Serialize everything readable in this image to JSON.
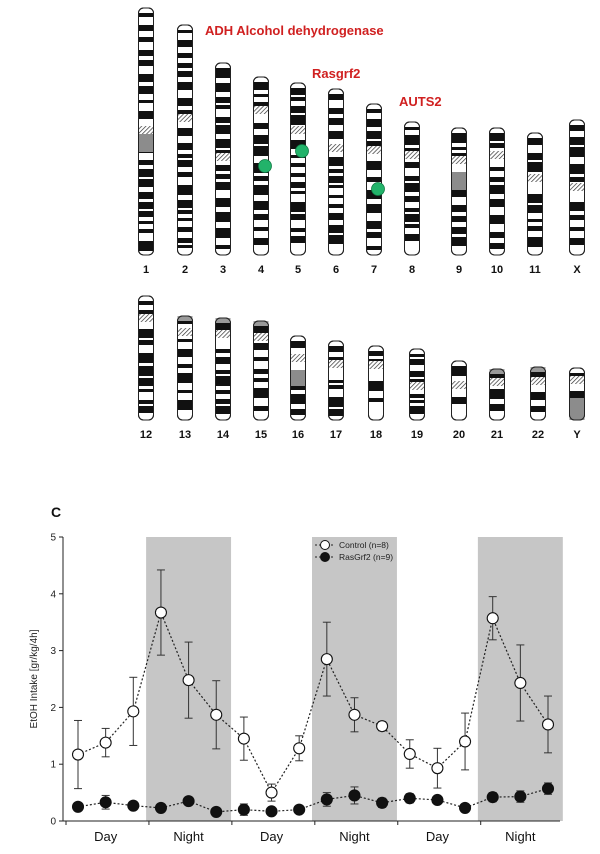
{
  "karyotype": {
    "chromosomes": [
      "1",
      "2",
      "3",
      "4",
      "5",
      "6",
      "7",
      "8",
      "9",
      "10",
      "11",
      "X",
      "12",
      "13",
      "14",
      "15",
      "16",
      "17",
      "18",
      "19",
      "20",
      "21",
      "22",
      "Y"
    ],
    "marker_color": "#22b36a",
    "gene_color": "#d02020",
    "genes": [
      {
        "label": "ADH Alcohol dehydrogenase",
        "chromosome": "4"
      },
      {
        "label": "Rasgrf2",
        "chromosome": "5"
      },
      {
        "label": "AUTS2",
        "chromosome": "7"
      }
    ]
  },
  "chart_data": {
    "type": "line",
    "panel_label": "C",
    "ylabel": "EtOH Intake [gr/kg/4h]",
    "ylim": [
      0,
      5
    ],
    "yticks": [
      "0",
      "1",
      "2",
      "3",
      "4",
      "5"
    ],
    "phases": [
      "Day",
      "Night",
      "Day",
      "Night",
      "Day",
      "Night"
    ],
    "night_shading": true,
    "series": [
      {
        "name": "Control (n=8)",
        "marker": "open-circle",
        "values": [
          1.17,
          1.38,
          1.93,
          3.67,
          2.48,
          1.87,
          1.45,
          0.5,
          1.28,
          2.85,
          1.87,
          1.67,
          1.18,
          0.93,
          1.4,
          3.57,
          2.43,
          1.7
        ],
        "errors": [
          0.6,
          0.25,
          0.6,
          0.75,
          0.67,
          0.6,
          0.38,
          0.15,
          0.22,
          0.65,
          0.3,
          0.08,
          0.25,
          0.35,
          0.5,
          0.38,
          0.67,
          0.5
        ]
      },
      {
        "name": "RasGrf2 (n=9)",
        "marker": "filled-circle",
        "values": [
          0.25,
          0.33,
          0.27,
          0.23,
          0.35,
          0.16,
          0.2,
          0.17,
          0.2,
          0.38,
          0.45,
          0.32,
          0.4,
          0.37,
          0.23,
          0.42,
          0.43,
          0.57
        ],
        "errors": [
          0.05,
          0.12,
          0.06,
          0.05,
          0.07,
          0.06,
          0.1,
          0.05,
          0.06,
          0.12,
          0.15,
          0.08,
          0.08,
          0.07,
          0.05,
          0.08,
          0.1,
          0.1
        ]
      }
    ]
  }
}
